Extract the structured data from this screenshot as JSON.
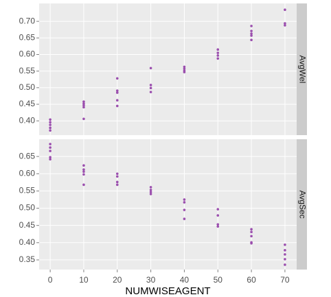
{
  "chart_data": [
    {
      "type": "scatter",
      "facet": "AvgWel",
      "x": [
        0,
        0,
        0,
        0,
        0,
        10,
        10,
        10,
        10,
        10,
        20,
        20,
        20,
        20,
        20,
        30,
        30,
        30,
        30,
        40,
        40,
        40,
        40,
        50,
        50,
        50,
        50,
        60,
        60,
        60,
        60,
        60,
        70,
        70,
        70
      ],
      "series": [
        {
          "color": "#9b4fae",
          "values": [
            0.404,
            0.396,
            0.388,
            0.379,
            0.371,
            0.458,
            0.452,
            0.447,
            0.441,
            0.406,
            0.528,
            0.491,
            0.485,
            0.462,
            0.445,
            0.559,
            0.508,
            0.499,
            0.487,
            0.563,
            0.557,
            0.551,
            0.547,
            0.615,
            0.605,
            0.597,
            0.588,
            0.686,
            0.671,
            0.663,
            0.657,
            0.644,
            0.735,
            0.694,
            0.688
          ]
        }
      ],
      "xlim": [
        -3.3,
        73.5
      ],
      "xticks": [
        0,
        10,
        20,
        30,
        40,
        50,
        60,
        70
      ],
      "ylim": [
        0.357,
        0.754
      ],
      "yticks": [
        {
          "value": 0.4,
          "label": "0.40"
        },
        0.45,
        {
          "value": 0.5,
          "label": "0.50"
        },
        0.55,
        {
          "value": 0.6,
          "label": "0.60"
        },
        0.65,
        {
          "value": 0.7,
          "label": "0.70"
        }
      ],
      "grid": true
    },
    {
      "type": "scatter",
      "facet": "AvgSec",
      "x_label": "NUMWISEAGENT",
      "x": [
        0,
        0,
        0,
        0,
        0,
        10,
        10,
        10,
        10,
        10,
        20,
        20,
        20,
        20,
        30,
        30,
        30,
        30,
        40,
        40,
        40,
        40,
        50,
        50,
        50,
        50,
        60,
        60,
        60,
        60,
        60,
        70,
        70,
        70,
        70,
        70
      ],
      "series": [
        {
          "color": "#9b4fae",
          "values": [
            0.686,
            0.676,
            0.666,
            0.648,
            0.642,
            0.624,
            0.612,
            0.606,
            0.598,
            0.568,
            0.6,
            0.592,
            0.576,
            0.568,
            0.561,
            0.553,
            0.547,
            0.541,
            0.525,
            0.517,
            0.495,
            0.469,
            0.497,
            0.479,
            0.453,
            0.447,
            0.439,
            0.431,
            0.419,
            0.401,
            0.398,
            0.394,
            0.378,
            0.366,
            0.352,
            0.336
          ]
        }
      ],
      "xlim": [
        -3.3,
        73.5
      ],
      "xticks": [
        0,
        10,
        20,
        30,
        40,
        50,
        60,
        70
      ],
      "ylim": [
        0.322,
        0.7
      ],
      "yticks": [
        0.35,
        {
          "value": 0.4,
          "label": "0.40"
        },
        0.45,
        {
          "value": 0.5,
          "label": "0.50"
        },
        0.55,
        {
          "value": 0.6,
          "label": "0.60"
        },
        0.65
      ],
      "grid": true
    }
  ]
}
